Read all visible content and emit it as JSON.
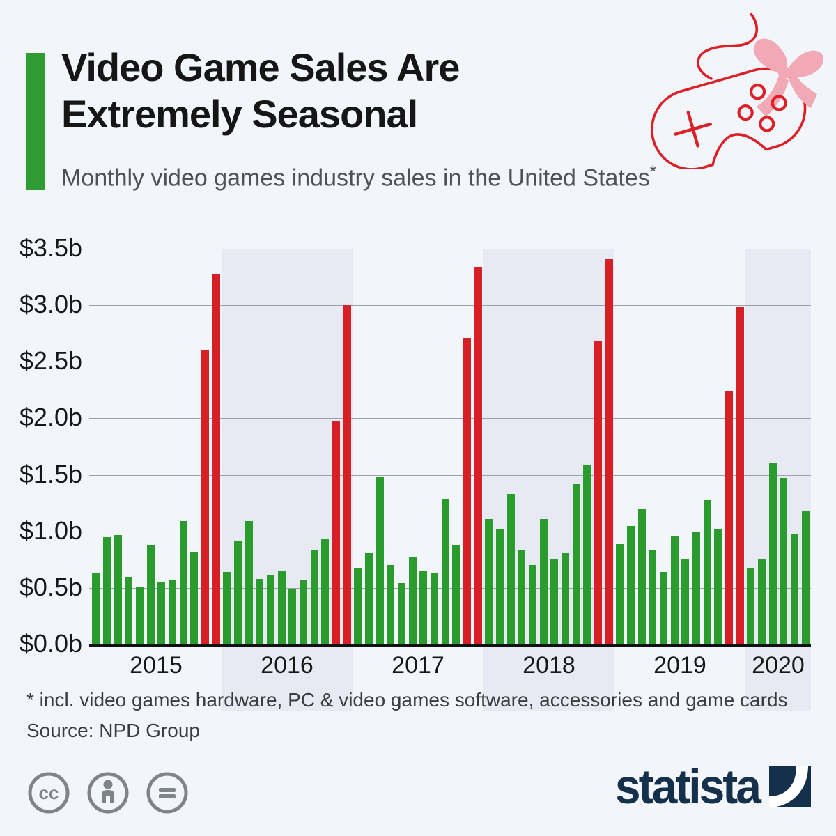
{
  "header": {
    "title_line1": "Video Game Sales Are",
    "title_line2": "Extremely Seasonal",
    "subtitle": "Monthly video games industry sales in the United States",
    "subtitle_asterisk": "*",
    "accent_color": "#2e9c33",
    "illustration": "game-controller-with-gift-bow"
  },
  "chart_data": {
    "type": "bar",
    "title": "Monthly video games industry sales in the United States",
    "value_unit": "billion US dollars per month",
    "ylim": [
      0,
      3.5
    ],
    "grid": true,
    "ytick_values": [
      0,
      0.5,
      1.0,
      1.5,
      2.0,
      2.5,
      3.0,
      3.5
    ],
    "ytick_labels": [
      "$0.0b",
      "$0.5b",
      "$1.0b",
      "$1.5b",
      "$2.0b",
      "$2.5b",
      "$3.0b",
      "$3.5b"
    ],
    "bar_color": "#2a9c2e",
    "holiday_bar_color": "#d71f26",
    "red_month_indices": [
      10,
      11
    ],
    "band_color": "#e7eaf2",
    "banded_years": [
      "2016",
      "2018",
      "2020"
    ],
    "years": [
      {
        "label": "2015",
        "values": [
          0.63,
          0.95,
          0.97,
          0.6,
          0.51,
          0.88,
          0.55,
          0.57,
          1.09,
          0.82,
          2.6,
          3.28
        ]
      },
      {
        "label": "2016",
        "values": [
          0.64,
          0.92,
          1.09,
          0.58,
          0.61,
          0.65,
          0.49,
          0.57,
          0.84,
          0.93,
          1.97,
          3.0
        ]
      },
      {
        "label": "2017",
        "values": [
          0.68,
          0.81,
          1.48,
          0.7,
          0.54,
          0.77,
          0.65,
          0.63,
          1.29,
          0.88,
          2.71,
          3.34
        ]
      },
      {
        "label": "2018",
        "values": [
          1.11,
          1.02,
          1.33,
          0.83,
          0.7,
          1.11,
          0.76,
          0.81,
          1.42,
          1.59,
          2.68,
          3.41
        ]
      },
      {
        "label": "2019",
        "values": [
          0.89,
          1.05,
          1.2,
          0.84,
          0.64,
          0.96,
          0.76,
          1.0,
          1.28,
          1.02,
          2.24,
          2.98
        ]
      },
      {
        "label": "2020",
        "values": [
          0.67,
          0.76,
          1.6,
          1.47,
          0.98,
          1.18
        ]
      }
    ]
  },
  "footer": {
    "note": "* incl. video games hardware, PC & video games software, accessories and game cards",
    "source": "Source: NPD Group"
  },
  "branding": {
    "logo_text": "statista",
    "logo_color": "#15304a",
    "license_icons": [
      "cc-icon",
      "attribution-person-icon",
      "equals-icon"
    ]
  }
}
